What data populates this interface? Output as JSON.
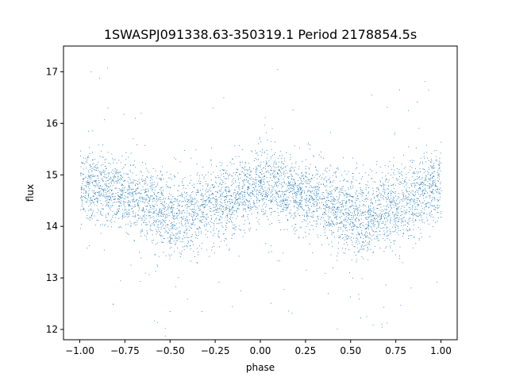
{
  "chart_data": {
    "type": "scatter",
    "title": "1SWASPJ091338.63-350319.1 Period 2178854.5s",
    "xlabel": "phase",
    "ylabel": "flux",
    "xlim": [
      -1.09,
      1.09
    ],
    "ylim": [
      11.8,
      17.5
    ],
    "xticks": [
      -1.0,
      -0.75,
      -0.5,
      -0.25,
      0.0,
      0.25,
      0.5,
      0.75,
      1.0
    ],
    "xtick_labels": [
      "−1.00",
      "−0.75",
      "−0.50",
      "−0.25",
      "0.00",
      "0.25",
      "0.50",
      "0.75",
      "1.00"
    ],
    "yticks": [
      12,
      13,
      14,
      15,
      16,
      17
    ],
    "ytick_labels": [
      "12",
      "13",
      "14",
      "15",
      "16",
      "17"
    ],
    "grid": false,
    "point_color": "#1f77b4",
    "series": [
      {
        "profile_x": [
          -1.0,
          -0.95,
          -0.9,
          -0.85,
          -0.8,
          -0.75,
          -0.7,
          -0.65,
          -0.6,
          -0.55,
          -0.5,
          -0.45,
          -0.4,
          -0.35,
          -0.3,
          -0.25,
          -0.2,
          -0.15,
          -0.1,
          -0.05,
          0.0,
          0.05,
          0.1,
          0.15,
          0.2,
          0.25,
          0.3,
          0.35,
          0.4,
          0.45,
          0.5,
          0.55,
          0.6,
          0.65,
          0.7,
          0.75,
          0.8,
          0.85,
          0.9,
          0.95,
          1.0
        ],
        "profile_y": [
          14.85,
          14.8,
          14.75,
          14.7,
          14.65,
          14.6,
          14.55,
          14.5,
          14.4,
          14.3,
          14.2,
          14.15,
          14.2,
          14.3,
          14.35,
          14.4,
          14.45,
          14.55,
          14.65,
          14.75,
          14.85,
          14.8,
          14.75,
          14.7,
          14.65,
          14.6,
          14.55,
          14.5,
          14.4,
          14.3,
          14.2,
          14.15,
          14.2,
          14.3,
          14.35,
          14.4,
          14.45,
          14.55,
          14.65,
          14.75,
          14.85
        ],
        "scatter_spread": [
          0.45,
          0.45,
          0.45,
          0.45,
          0.45,
          0.45,
          0.45,
          0.45,
          0.5,
          0.5,
          0.5,
          0.5,
          0.5,
          0.5,
          0.5,
          0.5,
          0.5,
          0.5,
          0.45,
          0.45,
          0.45,
          0.45,
          0.45,
          0.45,
          0.45,
          0.45,
          0.45,
          0.45,
          0.5,
          0.5,
          0.5,
          0.5,
          0.5,
          0.5,
          0.5,
          0.5,
          0.5,
          0.5,
          0.45,
          0.45,
          0.45
        ]
      }
    ]
  }
}
